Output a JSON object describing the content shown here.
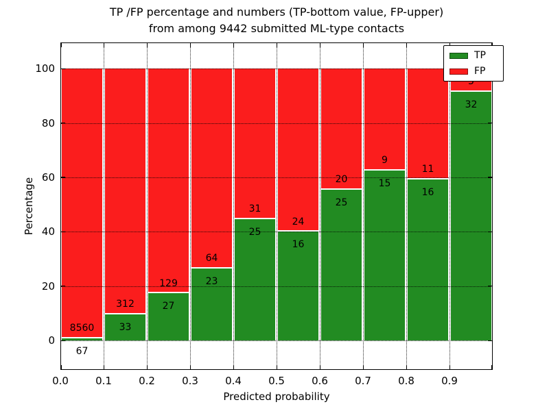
{
  "chart_data": {
    "type": "bar",
    "stacked": true,
    "normalized": "each bin scaled to 100%",
    "title_line1": "TP /FP percentage and numbers (TP-bottom value, FP-upper)",
    "title_line2": "from among 9442 submitted ML-type contacts",
    "xlabel": "Predicted probability",
    "ylabel": "Percentage",
    "total_contacts": 9442,
    "bins": [
      "0.0-0.1",
      "0.1-0.2",
      "0.2-0.3",
      "0.3-0.4",
      "0.4-0.5",
      "0.5-0.6",
      "0.6-0.7",
      "0.7-0.8",
      "0.8-0.9",
      "0.9-1.0"
    ],
    "bin_width": 0.1,
    "series": [
      {
        "name": "TP",
        "color": "#228B22",
        "counts": [
          67,
          33,
          27,
          23,
          25,
          16,
          25,
          15,
          16,
          32
        ]
      },
      {
        "name": "FP",
        "color": "#FB1D1D",
        "counts": [
          8560,
          312,
          129,
          64,
          31,
          24,
          20,
          9,
          11,
          3
        ]
      }
    ],
    "tp_percent_of_bin": [
      0.78,
      9.57,
      17.31,
      26.44,
      44.64,
      40.0,
      55.56,
      62.5,
      59.26,
      91.43
    ],
    "xlim": [
      0.0,
      1.0
    ],
    "ylim": [
      -10.8,
      109.6
    ],
    "xtick_labels": [
      "0.0",
      "0.1",
      "0.2",
      "0.3",
      "0.4",
      "0.5",
      "0.6",
      "0.7",
      "0.8",
      "0.9"
    ],
    "ytick_values": [
      "0",
      "20",
      "40",
      "60",
      "80",
      "100"
    ],
    "grid": "dotted black, horizontal at y-ticks and vertical at x-ticks",
    "legend": {
      "position": "upper right",
      "entries": [
        {
          "label": "TP",
          "color": "#228B22"
        },
        {
          "label": "FP",
          "color": "#FB1D1D"
        }
      ]
    }
  }
}
